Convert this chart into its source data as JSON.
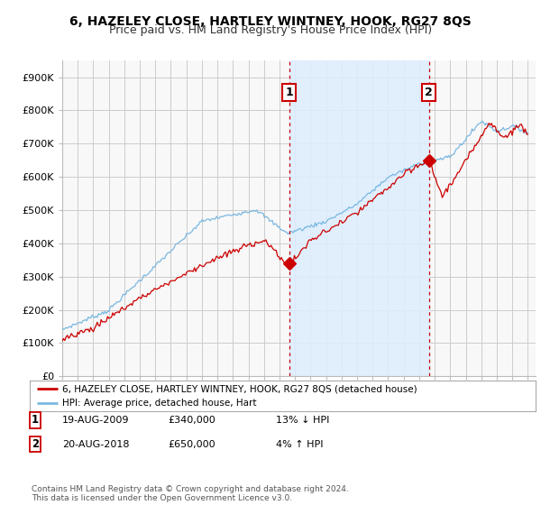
{
  "title": "6, HAZELEY CLOSE, HARTLEY WINTNEY, HOOK, RG27 8QS",
  "subtitle": "Price paid vs. HM Land Registry's House Price Index (HPI)",
  "ylabel_ticks": [
    "£0",
    "£100K",
    "£200K",
    "£300K",
    "£400K",
    "£500K",
    "£600K",
    "£700K",
    "£800K",
    "£900K"
  ],
  "ytick_values": [
    0,
    100000,
    200000,
    300000,
    400000,
    500000,
    600000,
    700000,
    800000,
    900000
  ],
  "ylim": [
    0,
    950000
  ],
  "xlim_start": 1995.0,
  "xlim_end": 2025.5,
  "background_color": "#ffffff",
  "plot_bg_color": "#f8f8f8",
  "grid_color": "#cccccc",
  "shade_color": "#ddeeff",
  "hpi_line_color": "#7ab8e0",
  "price_line_color": "#cc0000",
  "vline_color": "#cc0000",
  "transaction1": {
    "date_num": 2009.63,
    "price": 340000,
    "label": "1"
  },
  "transaction2": {
    "date_num": 2018.63,
    "price": 650000,
    "label": "2"
  },
  "legend_price_label": "6, HAZELEY CLOSE, HARTLEY WINTNEY, HOOK, RG27 8QS (detached house)",
  "legend_hpi_label": "HPI: Average price, detached house, Hart",
  "copyright": "Contains HM Land Registry data © Crown copyright and database right 2024.\nThis data is licensed under the Open Government Licence v3.0.",
  "title_fontsize": 10,
  "subtitle_fontsize": 9,
  "tick_fontsize": 8,
  "annot_row1_date": "19-AUG-2009",
  "annot_row1_price": "£340,000",
  "annot_row1_hpi": "13% ↓ HPI",
  "annot_row2_date": "20-AUG-2018",
  "annot_row2_price": "£650,000",
  "annot_row2_hpi": "4% ↑ HPI"
}
